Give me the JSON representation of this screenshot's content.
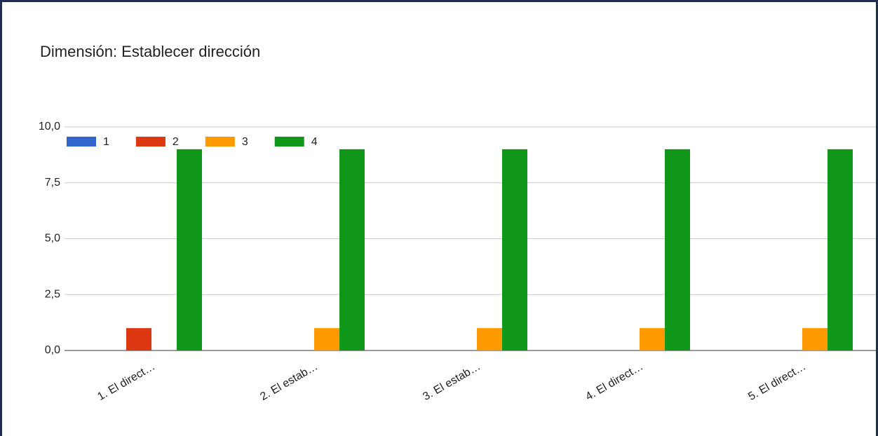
{
  "chart_data": {
    "type": "bar",
    "title": "Dimensión: Establecer dirección",
    "categories": [
      "1. El direct…",
      "2. El estab…",
      "3. El estab…",
      "4. El direct…",
      "5. El direct…"
    ],
    "series": [
      {
        "name": "1",
        "color": "#3366cc",
        "values": [
          0,
          0,
          0,
          0,
          0
        ]
      },
      {
        "name": "2",
        "color": "#dc3912",
        "values": [
          1,
          0,
          0,
          0,
          0
        ]
      },
      {
        "name": "3",
        "color": "#ff9900",
        "values": [
          0,
          1,
          1,
          1,
          1
        ]
      },
      {
        "name": "4",
        "color": "#109618",
        "values": [
          9,
          9,
          9,
          9,
          9
        ]
      }
    ],
    "ylim": [
      0,
      10
    ],
    "yticks": [
      {
        "value": 0,
        "label": "0,0"
      },
      {
        "value": 2.5,
        "label": "2,5"
      },
      {
        "value": 5,
        "label": "5,0"
      },
      {
        "value": 7.5,
        "label": "7,5"
      },
      {
        "value": 10,
        "label": "10,0"
      }
    ],
    "grid": true,
    "legend": "top"
  }
}
